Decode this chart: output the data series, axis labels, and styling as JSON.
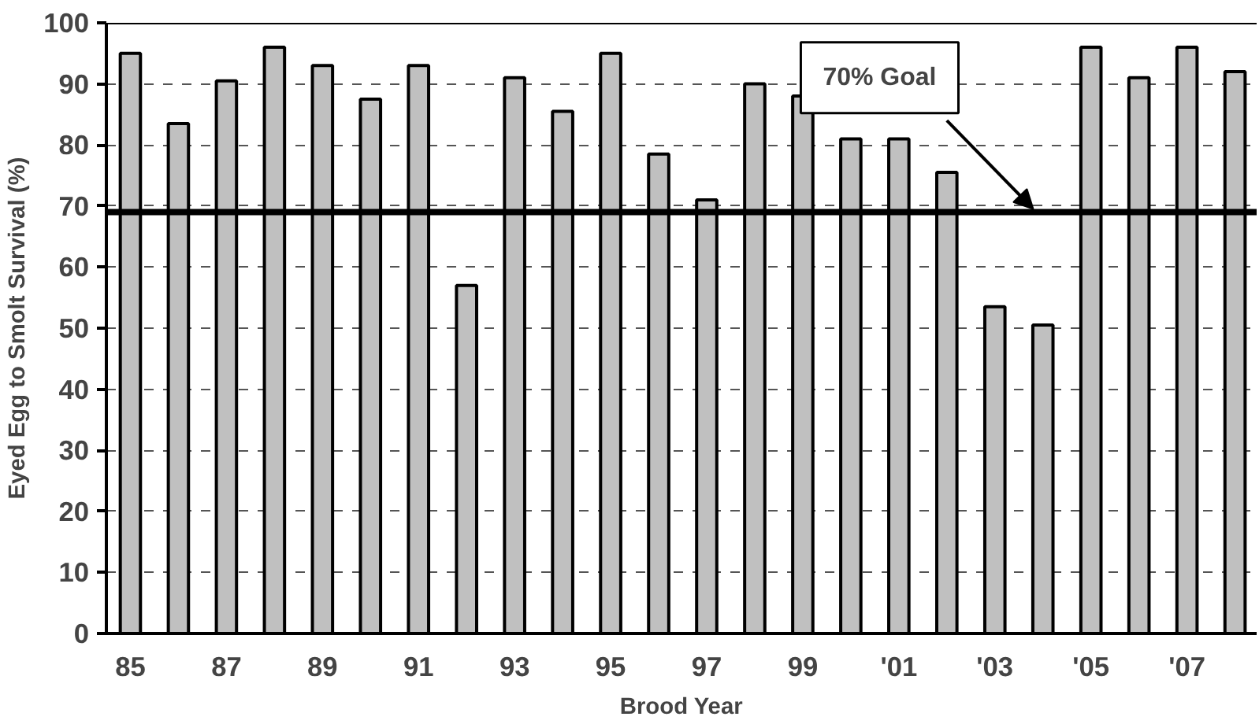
{
  "chart_data": {
    "type": "bar",
    "xlabel": "Brood Year",
    "ylabel": "Eyed Egg to Smolt Survival (%)",
    "categories": [
      "85",
      null,
      "87",
      null,
      "89",
      null,
      "91",
      null,
      "93",
      null,
      "95",
      null,
      "97",
      null,
      "99",
      null,
      "'01",
      null,
      "'03",
      null,
      "'05",
      null,
      "'07",
      null
    ],
    "values": [
      95,
      83.5,
      90.5,
      96,
      93,
      87.5,
      93,
      57,
      91,
      85.5,
      95,
      78.5,
      71,
      90,
      88,
      81,
      81,
      75.5,
      53.5,
      50.5,
      96,
      91,
      96,
      92
    ],
    "color": "#c0c0c0",
    "ylim": [
      0,
      100
    ],
    "yticks": [
      0,
      10,
      20,
      30,
      40,
      50,
      60,
      70,
      80,
      90,
      100
    ],
    "grid": "y",
    "ref_lines": [
      {
        "axis": "y",
        "value": 69,
        "label": "70% Goal",
        "color": "#000000",
        "line_style": "solid"
      }
    ]
  }
}
